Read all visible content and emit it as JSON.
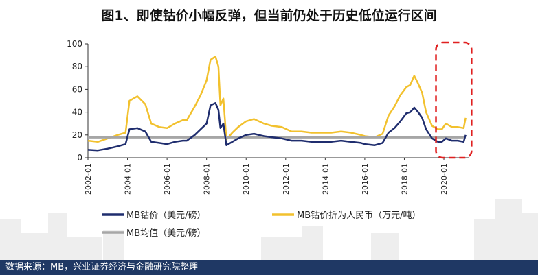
{
  "title": "图1、即使钴价小幅反弹，但当前仍处于历史低位运行区间",
  "footer": "数据来源：MB，兴业证券经济与金融研究院整理",
  "chart_data": {
    "type": "line",
    "title": "图1、即使钴价小幅反弹，但当前仍处于历史低位运行区间",
    "xlabel": "",
    "ylabel": "",
    "ylim": [
      0,
      100
    ],
    "yticks": [
      0,
      20,
      40,
      60,
      80,
      100
    ],
    "xlim": [
      2002.0,
      2021.25
    ],
    "xticks": [
      {
        "value": 2002,
        "label": "2002-01"
      },
      {
        "value": 2004,
        "label": "2004-01"
      },
      {
        "value": 2006,
        "label": "2006-01"
      },
      {
        "value": 2008,
        "label": "2008-01"
      },
      {
        "value": 2010,
        "label": "2010-01"
      },
      {
        "value": 2012,
        "label": "2012-01"
      },
      {
        "value": 2014,
        "label": "2014-01"
      },
      {
        "value": 2016,
        "label": "2016-01"
      },
      {
        "value": 2018,
        "label": "2018-01"
      },
      {
        "value": 2020,
        "label": "2020-01"
      }
    ],
    "grid": false,
    "legend_position": "bottom",
    "highlight_region": {
      "x": [
        2019.6,
        2021.4
      ],
      "y": [
        0,
        100
      ],
      "style": "red-dashed"
    },
    "series": [
      {
        "name": "MB钴价（美元/磅）",
        "color": "#1f2d6e",
        "x": [
          2002.0,
          2002.5,
          2003.0,
          2003.5,
          2003.9,
          2004.1,
          2004.5,
          2004.9,
          2005.2,
          2005.6,
          2006.0,
          2006.4,
          2006.8,
          2007.0,
          2007.4,
          2007.7,
          2008.0,
          2008.2,
          2008.45,
          2008.6,
          2008.7,
          2008.85,
          2009.0,
          2009.3,
          2009.6,
          2010.0,
          2010.4,
          2010.9,
          2011.3,
          2011.8,
          2012.3,
          2012.8,
          2013.3,
          2013.8,
          2014.3,
          2014.8,
          2015.3,
          2015.8,
          2016.0,
          2016.5,
          2016.9,
          2017.2,
          2017.5,
          2017.8,
          2018.1,
          2018.3,
          2018.5,
          2018.7,
          2018.9,
          2019.1,
          2019.4,
          2019.7,
          2019.9,
          2020.1,
          2020.4,
          2020.7,
          2021.0,
          2021.1
        ],
        "values": [
          7,
          6.5,
          8,
          10,
          12,
          25,
          26,
          23,
          14,
          13,
          12,
          14,
          15,
          15,
          20,
          25,
          30,
          46,
          48,
          42,
          26,
          30,
          11,
          14,
          17,
          20,
          21,
          19,
          18,
          17,
          15,
          15,
          14,
          14,
          14,
          15,
          14,
          13,
          12,
          11,
          13,
          22,
          26,
          32,
          39,
          40,
          44,
          40,
          35,
          25,
          17,
          14,
          14,
          17,
          15,
          15,
          14,
          20
        ]
      },
      {
        "name": "MB钴价折为人民币（万元/吨）",
        "color": "#f2c12e",
        "x": [
          2002.0,
          2002.5,
          2003.0,
          2003.5,
          2003.9,
          2004.1,
          2004.5,
          2004.9,
          2005.2,
          2005.6,
          2006.0,
          2006.4,
          2006.8,
          2007.0,
          2007.4,
          2007.7,
          2008.0,
          2008.2,
          2008.45,
          2008.6,
          2008.7,
          2008.85,
          2009.0,
          2009.3,
          2009.6,
          2010.0,
          2010.4,
          2010.9,
          2011.3,
          2011.8,
          2012.3,
          2012.8,
          2013.3,
          2013.8,
          2014.3,
          2014.8,
          2015.3,
          2015.8,
          2016.0,
          2016.5,
          2016.9,
          2017.2,
          2017.5,
          2017.8,
          2018.1,
          2018.3,
          2018.5,
          2018.7,
          2018.9,
          2019.1,
          2019.4,
          2019.7,
          2019.9,
          2020.1,
          2020.4,
          2020.7,
          2021.0,
          2021.1
        ],
        "values": [
          15,
          14,
          17,
          20,
          22,
          50,
          54,
          47,
          30,
          27,
          26,
          30,
          33,
          33,
          45,
          55,
          68,
          86,
          89,
          80,
          46,
          52,
          16,
          22,
          27,
          32,
          34,
          30,
          28,
          27,
          23,
          23,
          22,
          22,
          22,
          23,
          22,
          20,
          19,
          18,
          21,
          37,
          45,
          55,
          62,
          64,
          72,
          65,
          57,
          40,
          28,
          25,
          25,
          30,
          27,
          27,
          26,
          35
        ]
      },
      {
        "name": "MB均值（美元/磅）",
        "color": "#a6a6a6",
        "x": [
          2002.0,
          2021.1
        ],
        "values": [
          18,
          18
        ]
      }
    ]
  }
}
